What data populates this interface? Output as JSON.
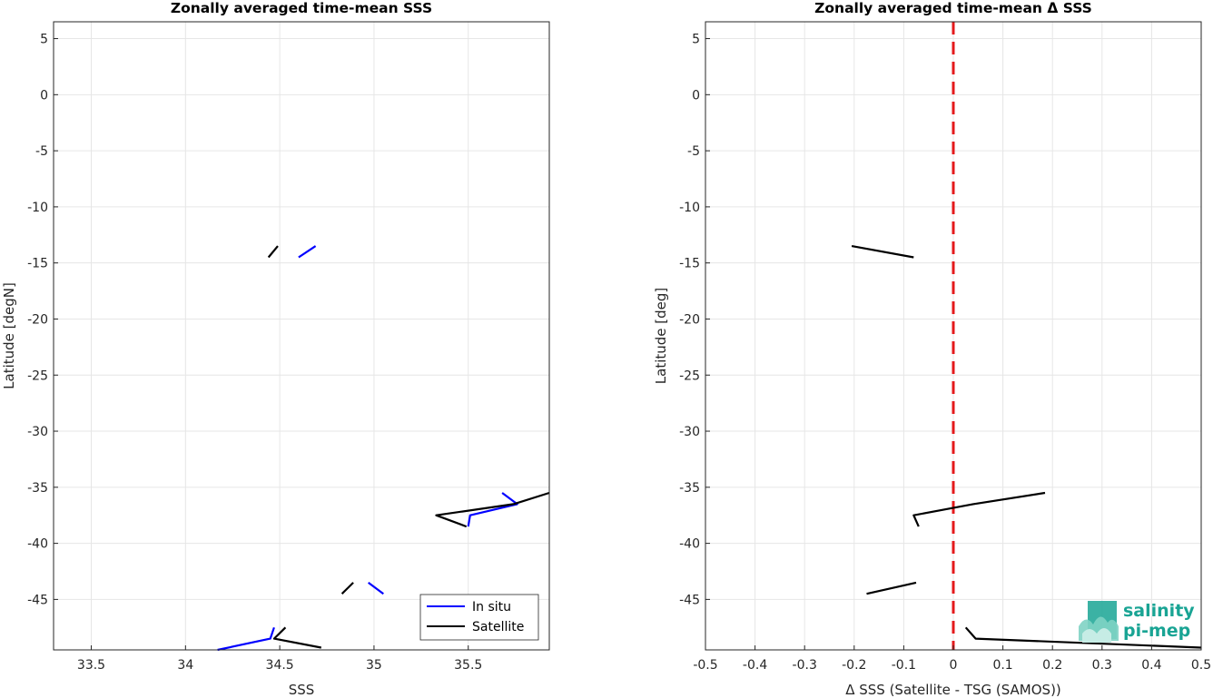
{
  "chart_data": [
    {
      "type": "line",
      "title": "Zonally averaged time-mean SSS",
      "xlabel": "SSS",
      "ylabel": "Latitude [degN]",
      "xlim": [
        33.3,
        35.93
      ],
      "ylim": [
        -49.5,
        6.5
      ],
      "xticks": [
        33.5,
        34,
        34.5,
        35,
        35.5
      ],
      "xtick_labels": [
        "33.5",
        "34",
        "34.5",
        "35",
        "35.5"
      ],
      "yticks": [
        5,
        0,
        -5,
        -10,
        -15,
        -20,
        -25,
        -30,
        -35,
        -40,
        -45
      ],
      "ytick_labels": [
        "5",
        "0",
        "-5",
        "-10",
        "-15",
        "-20",
        "-25",
        "-30",
        "-35",
        "-40",
        "-45"
      ],
      "grid": true,
      "legend_position": "bottom-right",
      "series": [
        {
          "name": "In situ",
          "color": "#0000ff",
          "segments": [
            [
              [
                34.69,
                -13.5
              ],
              [
                34.6,
                -14.5
              ]
            ],
            [
              [
                35.68,
                -35.5
              ],
              [
                35.76,
                -36.5
              ],
              [
                35.51,
                -37.5
              ],
              [
                35.5,
                -38.5
              ]
            ],
            [
              [
                34.97,
                -43.5
              ],
              [
                35.05,
                -44.5
              ]
            ],
            [
              [
                34.47,
                -47.5
              ],
              [
                34.45,
                -48.5
              ],
              [
                34.17,
                -49.5
              ]
            ]
          ]
        },
        {
          "name": "Satellite",
          "color": "#000000",
          "segments": [
            [
              [
                34.49,
                -13.5
              ],
              [
                34.44,
                -14.5
              ]
            ],
            [
              [
                35.93,
                -35.5
              ],
              [
                35.74,
                -36.5
              ],
              [
                35.33,
                -37.5
              ],
              [
                35.49,
                -38.5
              ]
            ],
            [
              [
                34.89,
                -43.5
              ],
              [
                34.83,
                -44.5
              ]
            ],
            [
              [
                34.53,
                -47.5
              ],
              [
                34.47,
                -48.5
              ],
              [
                34.72,
                -49.3
              ]
            ]
          ]
        }
      ]
    },
    {
      "type": "line",
      "title": "Zonally averaged time-mean Δ SSS",
      "xlabel": "Δ SSS (Satellite - TSG (SAMOS))",
      "ylabel": "Latitude [deg]",
      "xlim": [
        -0.5,
        0.5
      ],
      "ylim": [
        -49.5,
        6.5
      ],
      "xticks": [
        -0.5,
        -0.4,
        -0.3,
        -0.2,
        -0.1,
        0,
        0.1,
        0.2,
        0.3,
        0.4,
        0.5
      ],
      "xtick_labels": [
        "-0.5",
        "-0.4",
        "-0.3",
        "-0.2",
        "-0.1",
        "0",
        "0.1",
        "0.2",
        "0.3",
        "0.4",
        "0.5"
      ],
      "yticks": [
        5,
        0,
        -5,
        -10,
        -15,
        -20,
        -25,
        -30,
        -35,
        -40,
        -45
      ],
      "ytick_labels": [
        "5",
        "0",
        "-5",
        "-10",
        "-15",
        "-20",
        "-25",
        "-30",
        "-35",
        "-40",
        "-45"
      ],
      "grid": true,
      "reference_line": {
        "x": 0,
        "color": "#e41a1c",
        "style": "dashed"
      },
      "series": [
        {
          "color": "#000000",
          "segments": [
            [
              [
                -0.205,
                -13.5
              ],
              [
                -0.08,
                -14.5
              ]
            ],
            [
              [
                0.185,
                -35.5
              ],
              [
                0.04,
                -36.5
              ],
              [
                -0.08,
                -37.5
              ],
              [
                -0.07,
                -38.5
              ]
            ],
            [
              [
                -0.075,
                -43.5
              ],
              [
                -0.175,
                -44.5
              ]
            ],
            [
              [
                0.025,
                -47.5
              ],
              [
                0.045,
                -48.5
              ],
              [
                0.5,
                -49.3
              ]
            ]
          ]
        }
      ]
    }
  ],
  "logo": {
    "line1": "salinity",
    "line2": "pi-mep",
    "color": "#19a494"
  }
}
